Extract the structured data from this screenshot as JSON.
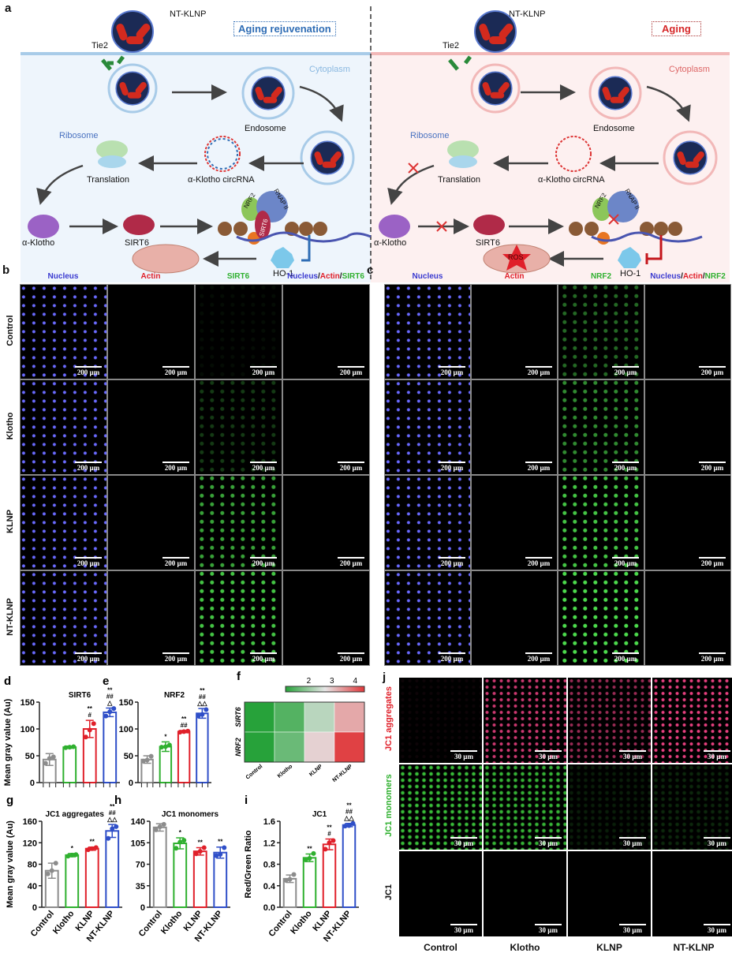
{
  "panel_a": {
    "label": "a",
    "left": {
      "title": "Aging rejuvenation",
      "color": "#2f6db5"
    },
    "right": {
      "title": "Aging",
      "color": "#d62728"
    },
    "labels": {
      "nanoparticle": "NT-KLNP",
      "receptor": "Tie2",
      "cytoplasm": "Cytoplasm",
      "endosome": "Endosome",
      "ribosome": "Ribosome",
      "translation": "Translation",
      "circrna": "α-Klotho circRNA",
      "klotho": "α-Klotho",
      "sirt6": "SIRT6",
      "nrf2": "NRF2",
      "rnap": "RNAP II",
      "ho1": "HO-1",
      "ros": "ROS"
    }
  },
  "panel_b": {
    "label": "b",
    "columns": [
      {
        "parts": [
          {
            "text": "Nucleus",
            "color": "#3a3ad0"
          }
        ]
      },
      {
        "parts": [
          {
            "text": "Actin",
            "color": "#e0202a"
          }
        ]
      },
      {
        "parts": [
          {
            "text": "SIRT6",
            "color": "#2fb02f"
          }
        ]
      },
      {
        "parts": [
          {
            "text": "Nucleus",
            "color": "#3a3ad0"
          },
          {
            "text": "/",
            "color": "#111"
          },
          {
            "text": "Actin",
            "color": "#e0202a"
          },
          {
            "text": "/",
            "color": "#111"
          },
          {
            "text": "SIRT6",
            "color": "#2fb02f"
          }
        ]
      }
    ],
    "rows": [
      "Control",
      "Klotho",
      "KLNP",
      "NT-KLNP"
    ],
    "scale_bar": "200 µm"
  },
  "panel_c": {
    "label": "c",
    "columns": [
      {
        "parts": [
          {
            "text": "Nucleus",
            "color": "#3a3ad0"
          }
        ]
      },
      {
        "parts": [
          {
            "text": "Actin",
            "color": "#e0202a"
          }
        ]
      },
      {
        "parts": [
          {
            "text": "NRF2",
            "color": "#2fb02f"
          }
        ]
      },
      {
        "parts": [
          {
            "text": "Nucleus",
            "color": "#3a3ad0"
          },
          {
            "text": "/",
            "color": "#111"
          },
          {
            "text": "Actin",
            "color": "#e0202a"
          },
          {
            "text": "/",
            "color": "#111"
          },
          {
            "text": "NRF2",
            "color": "#2fb02f"
          }
        ]
      }
    ],
    "scale_bar": "200 µm"
  },
  "panel_j": {
    "label": "j",
    "rows": [
      {
        "text": "JC1 aggregates",
        "color": "#e0202a"
      },
      {
        "text": "JC1 monomers",
        "color": "#2fb02f"
      },
      {
        "text": "JC1",
        "color": "#111"
      }
    ],
    "columns": [
      "Control",
      "Klotho",
      "KLNP",
      "NT-KLNP"
    ],
    "scale_bar": "30 µm"
  },
  "chart_data": [
    {
      "id": "d",
      "label": "d",
      "type": "bar",
      "title": "SIRT6",
      "ylabel": "Mean gray value (Au)",
      "xlabel": "",
      "categories": [
        "Control",
        "Klotho",
        "KLNP",
        "NT-KLNP"
      ],
      "show_category_labels": false,
      "values": [
        43,
        66,
        100,
        131
      ],
      "errors": [
        11,
        2,
        16,
        8
      ],
      "points": [
        [
          36,
          45,
          48
        ],
        [
          65,
          66,
          67
        ],
        [
          85,
          98,
          110
        ],
        [
          124,
          132,
          138
        ]
      ],
      "significance": [
        [],
        [],
        [
          "**",
          "#"
        ],
        [
          "**",
          "##",
          "△"
        ]
      ],
      "ylim": [
        0,
        150
      ],
      "yticks": [
        0,
        50,
        100,
        150
      ],
      "colors": [
        "#8c8c8c",
        "#2fb02f",
        "#e0202a",
        "#2f4fc8"
      ]
    },
    {
      "id": "e",
      "label": "e",
      "type": "bar",
      "title": "NRF2",
      "ylabel": "",
      "xlabel": "",
      "categories": [
        "Control",
        "Klotho",
        "KLNP",
        "NT-KLNP"
      ],
      "show_category_labels": false,
      "values": [
        43,
        67,
        95,
        129
      ],
      "errors": [
        7,
        9,
        2,
        9
      ],
      "points": [
        [
          40,
          42,
          49
        ],
        [
          66,
          67,
          70
        ],
        [
          94,
          95,
          96
        ],
        [
          124,
          127,
          136
        ]
      ],
      "significance": [
        [],
        [
          "*"
        ],
        [
          "**",
          "##"
        ],
        [
          "**",
          "##",
          "△△"
        ]
      ],
      "ylim": [
        0,
        150
      ],
      "yticks": [
        0,
        50,
        100,
        150
      ],
      "colors": [
        "#8c8c8c",
        "#2fb02f",
        "#e0202a",
        "#2f4fc8"
      ]
    },
    {
      "id": "f",
      "label": "f",
      "type": "heatmap",
      "columns": [
        "Control",
        "Klotho",
        "KLNP",
        "NT-KLNP"
      ],
      "rows": [
        "SIRT6",
        "NRF2"
      ],
      "values": [
        [
          1.0,
          1.4,
          2.3,
          3.3
        ],
        [
          1.0,
          1.6,
          2.9,
          4.3
        ]
      ],
      "colorbar": {
        "range": [
          1,
          4.4
        ],
        "ticks": [
          2,
          3,
          4
        ],
        "low": "#27a23a",
        "mid": "#e6e6e6",
        "high": "#e0373a"
      }
    },
    {
      "id": "g",
      "label": "g",
      "type": "bar",
      "title": "JC1 aggregates",
      "ylabel": "Mean gray value (Au)",
      "xlabel": "",
      "categories": [
        "Control",
        "Klotho",
        "KLNP",
        "NT-KLNP"
      ],
      "show_category_labels": true,
      "values": [
        68,
        97,
        109,
        142
      ],
      "errors": [
        14,
        3,
        3,
        12
      ],
      "points": [
        [
          62,
          68,
          82
        ],
        [
          95,
          97,
          98
        ],
        [
          107,
          109,
          111
        ],
        [
          128,
          146,
          150
        ]
      ],
      "significance": [
        [],
        [
          "*"
        ],
        [
          "**"
        ],
        [
          "**",
          "##",
          "△△"
        ]
      ],
      "ylim": [
        0,
        160
      ],
      "yticks": [
        0,
        40,
        80,
        120,
        160
      ],
      "colors": [
        "#8c8c8c",
        "#2fb02f",
        "#e0202a",
        "#2f4fc8"
      ]
    },
    {
      "id": "h",
      "label": "h",
      "type": "bar",
      "title": "JC1 monomers",
      "ylabel": "",
      "xlabel": "",
      "categories": [
        "Control",
        "Klotho",
        "KLNP",
        "NT-KLNP"
      ],
      "show_category_labels": true,
      "values": [
        130,
        104,
        91,
        89
      ],
      "errors": [
        6,
        9,
        6,
        9
      ],
      "points": [
        [
          126,
          131,
          135
        ],
        [
          96,
          106,
          109
        ],
        [
          87,
          91,
          97
        ],
        [
          84,
          86,
          97
        ]
      ],
      "significance": [
        [],
        [
          "*"
        ],
        [
          "**"
        ],
        [
          "**"
        ]
      ],
      "ylim": [
        0,
        140
      ],
      "yticks": [
        0,
        35,
        70,
        105,
        140
      ],
      "colors": [
        "#8c8c8c",
        "#2fb02f",
        "#e0202a",
        "#2f4fc8"
      ]
    },
    {
      "id": "i",
      "label": "i",
      "type": "bar",
      "title": "JC1",
      "ylabel": "Red/Green Ratio",
      "xlabel": "",
      "categories": [
        "Control",
        "Klotho",
        "KLNP",
        "NT-KLNP"
      ],
      "show_category_labels": true,
      "values": [
        0.53,
        0.92,
        1.17,
        1.53
      ],
      "errors": [
        0.07,
        0.07,
        0.1,
        0.03
      ],
      "points": [
        [
          0.5,
          0.52,
          0.61
        ],
        [
          0.88,
          0.91,
          1.0
        ],
        [
          1.08,
          1.2,
          1.24
        ],
        [
          1.51,
          1.52,
          1.56
        ]
      ],
      "significance": [
        [],
        [
          "**"
        ],
        [
          "**",
          "#"
        ],
        [
          "**",
          "##",
          "△△"
        ]
      ],
      "ylim": [
        0,
        1.6
      ],
      "yticks": [
        0.0,
        0.4,
        0.8,
        1.2,
        1.6
      ],
      "ytick_decimals": 1,
      "colors": [
        "#8c8c8c",
        "#2fb02f",
        "#e0202a",
        "#2f4fc8"
      ]
    }
  ]
}
